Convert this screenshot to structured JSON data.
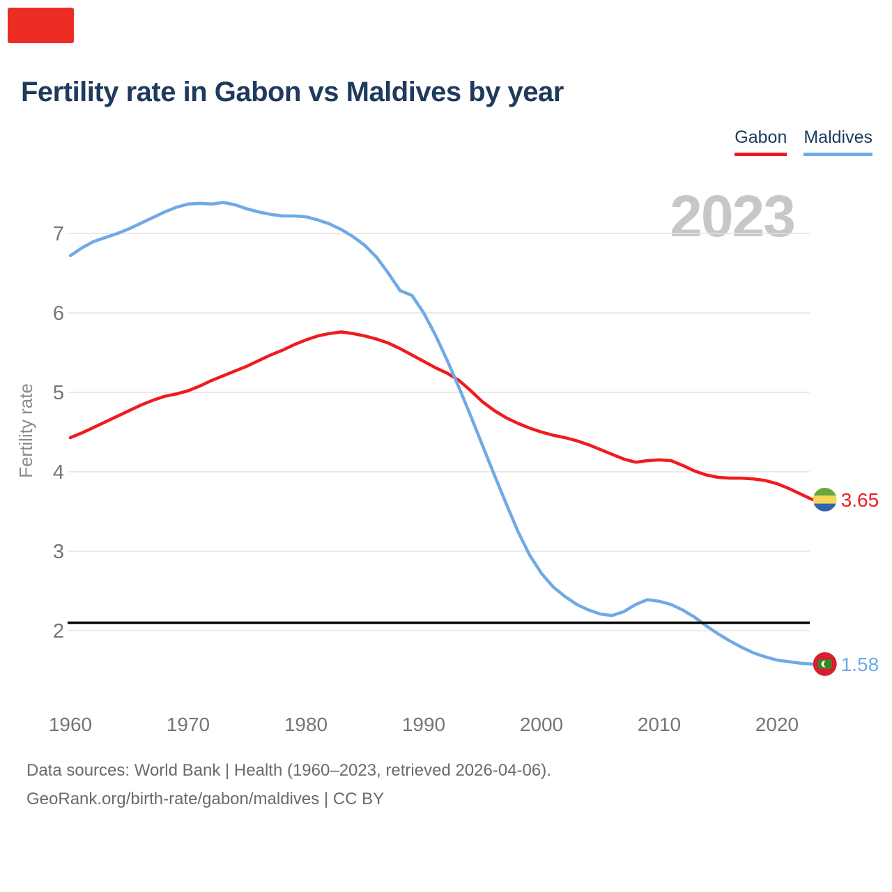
{
  "header": {
    "title": "Fertility rate in Gabon vs Maldives by year"
  },
  "legend": {
    "items": [
      {
        "label": "Gabon",
        "color": "#ef1c1e"
      },
      {
        "label": "Maldives",
        "color": "#6faae6"
      }
    ]
  },
  "watermark": {
    "text": "2023"
  },
  "colors": {
    "gabon": "#ef1c1e",
    "maldives": "#6faae6",
    "reference_line": "#000000",
    "title_text": "#1e3a5c",
    "watermark": "#c7c7c7",
    "axis_text": "#757575",
    "gridline": "#e4e4e4",
    "marker_red": "#ed2d24"
  },
  "chart_data": {
    "type": "line",
    "title": "Fertility rate in Gabon vs Maldives by year",
    "xlabel": "",
    "ylabel": "Fertility rate",
    "x_ticks": [
      1960,
      1970,
      1980,
      1990,
      2000,
      2010,
      2020
    ],
    "y_ticks": [
      2,
      3,
      4,
      5,
      6,
      7
    ],
    "ylim": [
      1.45,
      7.6
    ],
    "xlim": [
      1960,
      2023
    ],
    "grid": "horizontal",
    "legend_position": "top-right",
    "x": [
      1960,
      1961,
      1962,
      1963,
      1964,
      1965,
      1966,
      1967,
      1968,
      1969,
      1970,
      1971,
      1972,
      1973,
      1974,
      1975,
      1976,
      1977,
      1978,
      1979,
      1980,
      1981,
      1982,
      1983,
      1984,
      1985,
      1986,
      1987,
      1988,
      1989,
      1990,
      1991,
      1992,
      1993,
      1994,
      1995,
      1996,
      1997,
      1998,
      1999,
      2000,
      2001,
      2002,
      2003,
      2004,
      2005,
      2006,
      2007,
      2008,
      2009,
      2010,
      2011,
      2012,
      2013,
      2014,
      2015,
      2016,
      2017,
      2018,
      2019,
      2020,
      2021,
      2022,
      2023
    ],
    "series": [
      {
        "name": "Gabon",
        "color": "#ef1c1e",
        "flag_icon": "gabon-flag-icon",
        "end_label": "3.65",
        "values": [
          4.43,
          4.49,
          4.56,
          4.63,
          4.7,
          4.77,
          4.84,
          4.9,
          4.95,
          4.98,
          5.02,
          5.08,
          5.15,
          5.21,
          5.27,
          5.33,
          5.4,
          5.47,
          5.53,
          5.6,
          5.66,
          5.71,
          5.74,
          5.76,
          5.74,
          5.71,
          5.67,
          5.62,
          5.55,
          5.47,
          5.39,
          5.31,
          5.24,
          5.15,
          5.02,
          4.88,
          4.77,
          4.68,
          4.61,
          4.55,
          4.5,
          4.46,
          4.43,
          4.39,
          4.34,
          4.28,
          4.22,
          4.16,
          4.12,
          4.14,
          4.15,
          4.14,
          4.08,
          4.01,
          3.96,
          3.93,
          3.92,
          3.92,
          3.91,
          3.89,
          3.85,
          3.79,
          3.72,
          3.65
        ]
      },
      {
        "name": "Maldives",
        "color": "#6faae6",
        "flag_icon": "maldives-flag-icon",
        "end_label": "1.58",
        "values": [
          6.72,
          6.82,
          6.9,
          6.95,
          7.0,
          7.06,
          7.13,
          7.2,
          7.27,
          7.33,
          7.37,
          7.38,
          7.37,
          7.39,
          7.36,
          7.31,
          7.27,
          7.24,
          7.22,
          7.22,
          7.21,
          7.17,
          7.12,
          7.05,
          6.96,
          6.85,
          6.7,
          6.5,
          6.28,
          6.22,
          6.0,
          5.72,
          5.4,
          5.06,
          4.7,
          4.33,
          3.96,
          3.6,
          3.25,
          2.95,
          2.72,
          2.55,
          2.43,
          2.33,
          2.26,
          2.21,
          2.19,
          2.24,
          2.33,
          2.39,
          2.37,
          2.33,
          2.26,
          2.17,
          2.06,
          1.96,
          1.87,
          1.79,
          1.72,
          1.67,
          1.63,
          1.61,
          1.59,
          1.58
        ]
      }
    ],
    "reference_line": {
      "value": 2.1,
      "color": "#000000"
    }
  },
  "footer": {
    "line1": "Data sources: World Bank | Health (1960–2023, retrieved 2026-04-06).",
    "line2": "GeoRank.org/birth-rate/gabon/maldives | CC BY"
  }
}
